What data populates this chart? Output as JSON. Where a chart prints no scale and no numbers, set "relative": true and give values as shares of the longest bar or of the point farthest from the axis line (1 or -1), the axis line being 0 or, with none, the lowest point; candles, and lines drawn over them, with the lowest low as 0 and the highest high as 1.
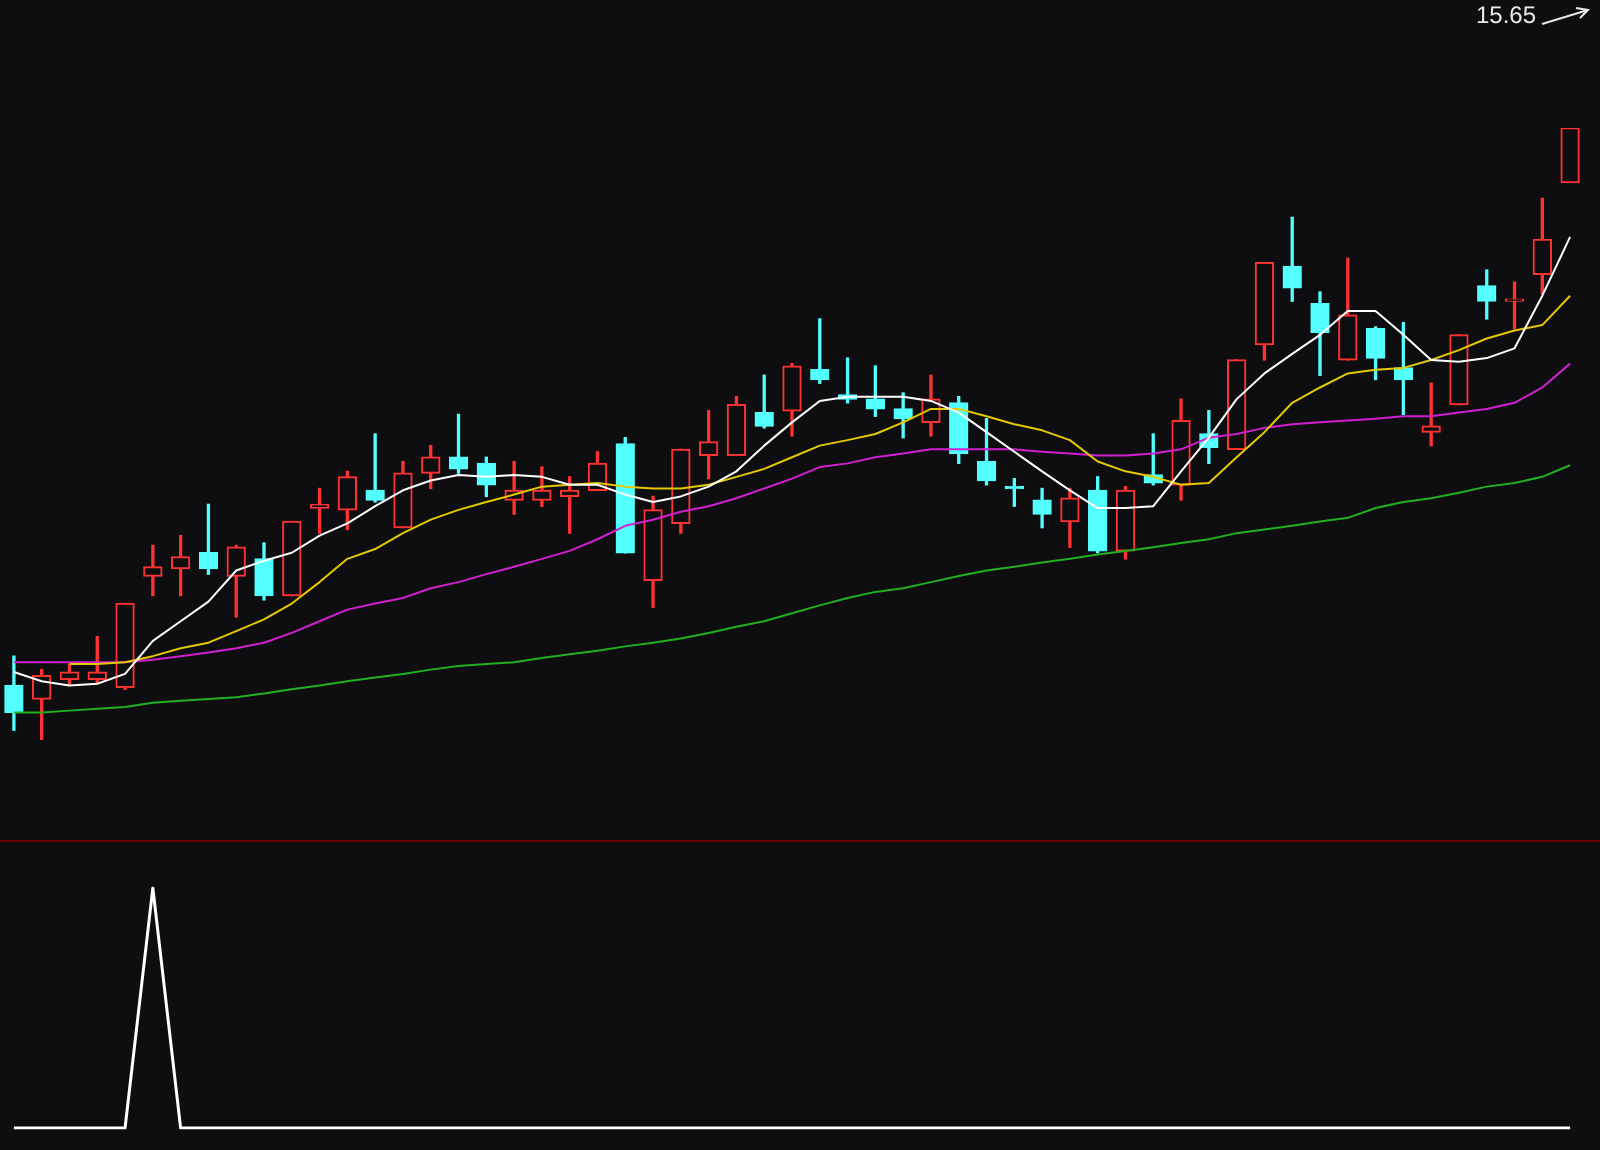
{
  "chart_data": [
    {
      "type": "candlestick",
      "relative": true,
      "legend": false,
      "categories": [
        null,
        null,
        null,
        null,
        null,
        null,
        null,
        null,
        null,
        null,
        null,
        null,
        null,
        null,
        null,
        null,
        null,
        null,
        null,
        null,
        null,
        null,
        null,
        null,
        null,
        null,
        null,
        null,
        null,
        null,
        null,
        null,
        null,
        null,
        null,
        null,
        null,
        null,
        null,
        null,
        null,
        null,
        null,
        null,
        null,
        null,
        null,
        null,
        null,
        null,
        null,
        null,
        null,
        null,
        null,
        null,
        null
      ],
      "ohlc": [
        [
          0.089,
          0.137,
          0.016,
          0.045
        ],
        [
          0.067,
          0.115,
          0,
          0.105
        ],
        [
          0.099,
          0.124,
          0.089,
          0.111
        ],
        [
          0.099,
          0.169,
          0.092,
          0.111
        ],
        [
          0.086,
          0.223,
          0.083,
          0.223
        ],
        [
          0.268,
          0.318,
          0.236,
          0.283
        ],
        [
          0.28,
          0.334,
          0.236,
          0.299
        ],
        [
          0.306,
          0.385,
          0.271,
          0.28
        ],
        [
          0.268,
          0.318,
          0.201,
          0.315
        ],
        [
          0.296,
          0.322,
          0.229,
          0.236
        ],
        [
          0.236,
          0.357,
          0.236,
          0.357
        ],
        [
          0.379,
          0.411,
          0.338,
          0.385
        ],
        [
          0.376,
          0.439,
          0.344,
          0.43
        ],
        [
          0.408,
          0.5,
          0.389,
          0.392
        ],
        [
          0.347,
          0.455,
          0.347,
          0.436
        ],
        [
          0.436,
          0.481,
          0.411,
          0.462
        ],
        [
          0.462,
          0.532,
          0.436,
          0.443
        ],
        [
          0.452,
          0.462,
          0.398,
          0.417
        ],
        [
          0.392,
          0.455,
          0.369,
          0.408
        ],
        [
          0.392,
          0.446,
          0.382,
          0.408
        ],
        [
          0.398,
          0.43,
          0.338,
          0.408
        ],
        [
          0.408,
          0.471,
          0.408,
          0.452
        ],
        [
          0.484,
          0.494,
          0.306,
          0.306
        ],
        [
          0.261,
          0.398,
          0.217,
          0.376
        ],
        [
          0.354,
          0.475,
          0.338,
          0.475
        ],
        [
          0.465,
          0.538,
          0.427,
          0.487
        ],
        [
          0.465,
          0.561,
          0.465,
          0.548
        ],
        [
          0.535,
          0.596,
          0.51,
          0.513
        ],
        [
          0.538,
          0.615,
          0.497,
          0.611
        ],
        [
          0.605,
          0.688,
          0.583,
          0.589
        ],
        [
          0.564,
          0.624,
          0.551,
          0.557
        ],
        [
          0.557,
          0.611,
          0.529,
          0.541
        ],
        [
          0.541,
          0.567,
          0.494,
          0.525
        ],
        [
          0.519,
          0.596,
          0.497,
          0.557
        ],
        [
          0.551,
          0.561,
          0.452,
          0.468
        ],
        [
          0.455,
          0.525,
          0.417,
          0.424
        ],
        [
          0.411,
          0.427,
          0.382,
          0.411
        ],
        [
          0.392,
          0.411,
          0.347,
          0.369
        ],
        [
          0.357,
          0.411,
          0.315,
          0.395
        ],
        [
          0.408,
          0.43,
          0.306,
          0.309
        ],
        [
          0.309,
          0.414,
          0.296,
          0.408
        ],
        [
          0.433,
          0.5,
          0.417,
          0.42
        ],
        [
          0.417,
          0.557,
          0.392,
          0.522
        ],
        [
          0.5,
          0.538,
          0.452,
          0.478
        ],
        [
          0.475,
          0.621,
          0.475,
          0.621
        ],
        [
          0.646,
          0.78,
          0.621,
          0.78
        ],
        [
          0.774,
          0.854,
          0.717,
          0.739
        ],
        [
          0.713,
          0.732,
          0.596,
          0.666
        ],
        [
          0.621,
          0.787,
          0.621,
          0.694
        ],
        [
          0.672,
          0.675,
          0.589,
          0.624
        ],
        [
          0.608,
          0.682,
          0.532,
          0.589
        ],
        [
          0.503,
          0.583,
          0.481,
          0.513
        ],
        [
          0.548,
          0.662,
          0.548,
          0.662
        ],
        [
          0.742,
          0.768,
          0.688,
          0.717
        ],
        [
          0.717,
          0.748,
          0.672,
          0.72
        ],
        [
          0.761,
          0.885,
          0.729,
          0.818
        ],
        [
          0.911,
          1,
          0.911,
          1
        ]
      ],
      "colors": [
        "#54ffff",
        "#ff3232",
        "#ff3232",
        "#ff3232",
        "#ff3232",
        "#ff3232",
        "#ff3232",
        "#54ffff",
        "#ff3232",
        "#54ffff",
        "#ff3232",
        "#ff3232",
        "#ff3232",
        "#54ffff",
        "#ff3232",
        "#ff3232",
        "#54ffff",
        "#54ffff",
        "#ff3232",
        "#ff3232",
        "#ff3232",
        "#ff3232",
        "#54ffff",
        "#ff3232",
        "#ff3232",
        "#ff3232",
        "#ff3232",
        "#54ffff",
        "#ff3232",
        "#54ffff",
        "#54ffff",
        "#54ffff",
        "#54ffff",
        "#ff3232",
        "#54ffff",
        "#54ffff",
        "#54ffff",
        "#54ffff",
        "#ff3232",
        "#54ffff",
        "#ff3232",
        "#54ffff",
        "#ff3232",
        "#54ffff",
        "#ff3232",
        "#ff3232",
        "#54ffff",
        "#54ffff",
        "#ff3232",
        "#54ffff",
        "#54ffff",
        "#ff3232",
        "#ff3232",
        "#54ffff",
        "#ff3232",
        "#ff3232",
        "#ff3232"
      ],
      "series": [
        {
          "type": "line",
          "color": "#ffffff",
          "values": [
            0.111,
            0.096,
            0.089,
            0.092,
            0.108,
            0.162,
            0.194,
            0.226,
            0.277,
            0.293,
            0.306,
            0.334,
            0.354,
            0.382,
            0.408,
            0.424,
            0.433,
            0.43,
            0.433,
            0.43,
            0.417,
            0.417,
            0.401,
            0.389,
            0.398,
            0.414,
            0.439,
            0.481,
            0.519,
            0.554,
            0.561,
            0.561,
            0.561,
            0.554,
            0.535,
            0.503,
            0.471,
            0.439,
            0.408,
            0.379,
            0.379,
            0.382,
            0.439,
            0.494,
            0.557,
            0.599,
            0.631,
            0.662,
            0.701,
            0.701,
            0.662,
            0.621,
            0.618,
            0.624,
            0.64,
            0.726,
            0.822
          ]
        },
        {
          "type": "line",
          "color": "#e6c800",
          "values": [
            null,
            null,
            0.124,
            0.124,
            0.127,
            0.137,
            0.15,
            0.159,
            0.178,
            0.197,
            0.223,
            0.258,
            0.296,
            0.312,
            0.338,
            0.36,
            0.376,
            0.389,
            0.401,
            0.414,
            0.417,
            0.42,
            0.414,
            0.411,
            0.411,
            0.417,
            0.43,
            0.443,
            0.462,
            0.481,
            0.49,
            0.5,
            0.519,
            0.541,
            0.541,
            0.529,
            0.516,
            0.506,
            0.49,
            0.455,
            0.439,
            0.43,
            0.417,
            0.42,
            0.462,
            0.503,
            0.551,
            0.576,
            0.599,
            0.605,
            0.608,
            0.621,
            0.637,
            0.656,
            0.669,
            0.678,
            0.726
          ]
        },
        {
          "type": "line",
          "color": "#d020d0",
          "values": [
            0.127,
            0.127,
            0.127,
            0.127,
            0.127,
            0.131,
            0.137,
            0.143,
            0.15,
            0.159,
            0.175,
            0.194,
            0.213,
            0.223,
            0.232,
            0.248,
            0.258,
            0.271,
            0.283,
            0.296,
            0.309,
            0.328,
            0.35,
            0.36,
            0.373,
            0.382,
            0.395,
            0.411,
            0.427,
            0.446,
            0.452,
            0.462,
            0.468,
            0.475,
            0.475,
            0.475,
            0.475,
            0.471,
            0.468,
            0.465,
            0.465,
            0.468,
            0.475,
            0.494,
            0.5,
            0.51,
            0.516,
            0.519,
            0.522,
            0.525,
            0.529,
            0.529,
            0.535,
            0.541,
            0.551,
            0.576,
            0.615
          ]
        },
        {
          "type": "line",
          "color": "#20b020",
          "values": [
            0.045,
            0.045,
            0.048,
            0.051,
            0.054,
            0.061,
            0.064,
            0.067,
            0.07,
            0.076,
            0.083,
            0.089,
            0.096,
            0.102,
            0.108,
            0.115,
            0.121,
            0.124,
            0.127,
            0.134,
            0.14,
            0.146,
            0.153,
            0.159,
            0.166,
            0.175,
            0.185,
            0.194,
            0.207,
            0.22,
            0.232,
            0.242,
            0.248,
            0.258,
            0.268,
            0.277,
            0.283,
            0.29,
            0.296,
            0.303,
            0.309,
            0.315,
            0.322,
            0.328,
            0.338,
            0.344,
            0.35,
            0.357,
            0.363,
            0.379,
            0.389,
            0.395,
            0.404,
            0.414,
            0.42,
            0.43,
            0.449
          ]
        }
      ],
      "annotations": [
        "15.65"
      ]
    },
    {
      "type": "line",
      "relative": true,
      "legend": false,
      "color": "#ffffff",
      "categories": [
        null,
        null,
        null,
        null,
        null,
        null,
        null,
        null,
        null,
        null,
        null,
        null,
        null,
        null,
        null,
        null,
        null,
        null,
        null,
        null,
        null,
        null,
        null,
        null,
        null,
        null,
        null,
        null,
        null,
        null,
        null,
        null,
        null,
        null,
        null,
        null,
        null,
        null,
        null,
        null,
        null,
        null,
        null,
        null,
        null,
        null,
        null,
        null,
        null,
        null,
        null,
        null,
        null,
        null,
        null,
        null,
        null
      ],
      "values": [
        0,
        0,
        0,
        0,
        0,
        1,
        0,
        0,
        0,
        0,
        0,
        0,
        0,
        0,
        0,
        0,
        0,
        0,
        0,
        0,
        0,
        0,
        0,
        0,
        0,
        0,
        0,
        0,
        0,
        0,
        0,
        0,
        0,
        0,
        0,
        0,
        0,
        0,
        0,
        0,
        0,
        0,
        0,
        0,
        0,
        0,
        0,
        0,
        0,
        0,
        0,
        0,
        0,
        0,
        0,
        0,
        0
      ]
    }
  ]
}
